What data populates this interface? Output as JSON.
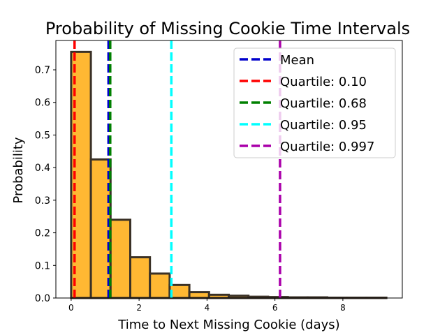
{
  "chart_data": {
    "type": "bar",
    "title": "Probability of Missing Cookie Time Intervals",
    "xlabel": "Time to Next Missing Cookie (days)",
    "ylabel": "Probability",
    "xlim": [
      -0.45,
      9.75
    ],
    "ylim": [
      0,
      0.79
    ],
    "xticks": [
      0,
      2,
      4,
      6,
      8
    ],
    "yticks": [
      0.0,
      0.1,
      0.2,
      0.3,
      0.4,
      0.5,
      0.6,
      0.7
    ],
    "bin_edges": [
      0.0,
      0.58,
      1.16,
      1.74,
      2.32,
      2.9,
      3.48,
      4.06,
      4.64,
      5.22,
      5.8,
      6.38,
      6.96,
      7.54,
      8.12,
      8.7,
      9.28
    ],
    "values": [
      0.755,
      0.425,
      0.24,
      0.125,
      0.075,
      0.04,
      0.018,
      0.01,
      0.007,
      0.004,
      0.003,
      0.002,
      0.002,
      0.001,
      0.001,
      0.001
    ],
    "bar_color": "#ffb833",
    "bar_edge_color": "#3a3126",
    "grid": false,
    "legend_position": "top-right",
    "reference_lines": [
      {
        "label": "Mean",
        "x": 1.1,
        "color": "#0000cc"
      },
      {
        "label": "Quartile: 0.10",
        "x": 0.1,
        "color": "#ff0000"
      },
      {
        "label": "Quartile: 0.68",
        "x": 1.15,
        "color": "#008000"
      },
      {
        "label": "Quartile: 0.95",
        "x": 2.95,
        "color": "#00ffff"
      },
      {
        "label": "Quartile: 0.997",
        "x": 6.15,
        "color": "#aa00aa"
      }
    ]
  }
}
